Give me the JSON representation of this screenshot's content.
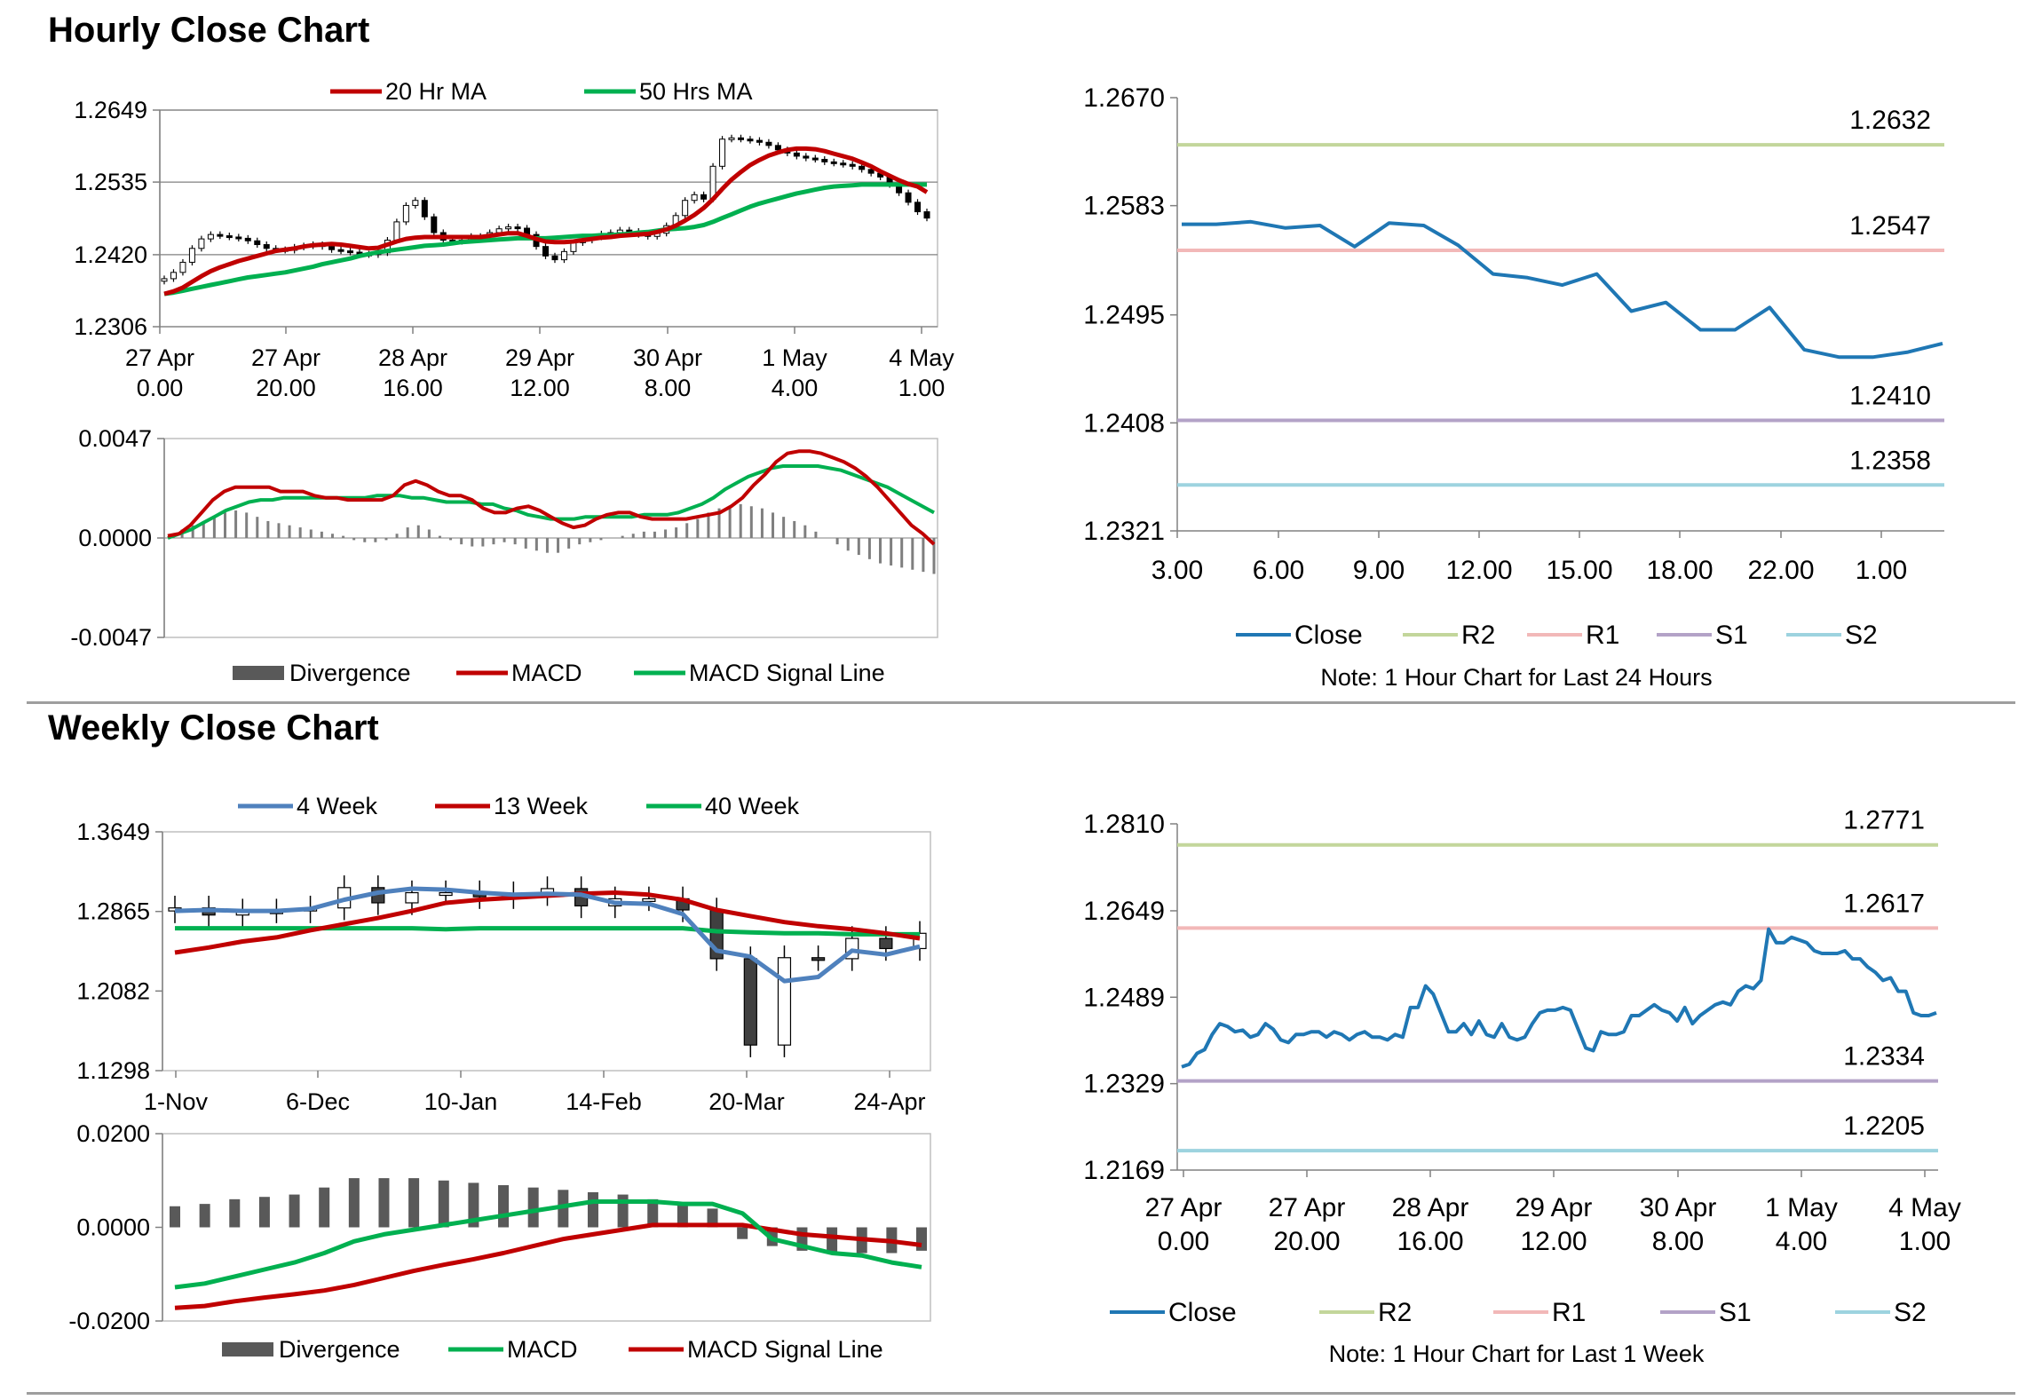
{
  "sections": {
    "hourly_title": "Hourly Close Chart",
    "weekly_title": "Weekly Close Chart"
  },
  "colors": {
    "ma_red": "#c00000",
    "ma_green": "#00b050",
    "blue": "#4f81bd",
    "close_blue": "#1f77b4",
    "divergence": "#595959",
    "r2": "#c3d69b",
    "r1": "#f2b8b8",
    "s1": "#b3a2c7",
    "s2": "#9dd3df"
  },
  "chart_data": [
    {
      "id": "hourly-price",
      "type": "candlestick",
      "ylim": [
        1.2306,
        1.2649
      ],
      "yticks": [
        "1.2649",
        "1.2535",
        "1.2420",
        "1.2306"
      ],
      "xticks": [
        [
          "27 Apr",
          "0.00"
        ],
        [
          "27 Apr",
          "20.00"
        ],
        [
          "28 Apr",
          "16.00"
        ],
        [
          "29 Apr",
          "12.00"
        ],
        [
          "30 Apr",
          "8.00"
        ],
        [
          "1 May",
          "4.00"
        ],
        [
          "4 May",
          "1.00"
        ]
      ],
      "legend": [
        "20 Hr MA",
        "50 Hrs MA"
      ],
      "close": [
        1.2382,
        1.2392,
        1.2408,
        1.243,
        1.2445,
        1.2452,
        1.245,
        1.2448,
        1.2446,
        1.2442,
        1.2436,
        1.243,
        1.2428,
        1.2427,
        1.2432,
        1.2434,
        1.2436,
        1.2433,
        1.2428,
        1.2426,
        1.2424,
        1.2421,
        1.242,
        1.2423,
        1.2443,
        1.2472,
        1.2498,
        1.2506,
        1.248,
        1.2455,
        1.2443,
        1.2441,
        1.2443,
        1.2449,
        1.2448,
        1.2455,
        1.2461,
        1.2464,
        1.2462,
        1.2452,
        1.2433,
        1.2418,
        1.2412,
        1.2425,
        1.2439,
        1.2443,
        1.2448,
        1.2453,
        1.2455,
        1.2459,
        1.2457,
        1.2452,
        1.2449,
        1.2454,
        1.2466,
        1.2482,
        1.2506,
        1.2515,
        1.2508,
        1.256,
        1.2603,
        1.2605,
        1.2603,
        1.2601,
        1.2598,
        1.2593,
        1.2586,
        1.2581,
        1.2576,
        1.2573,
        1.2571,
        1.2567,
        1.2565,
        1.2563,
        1.256,
        1.2555,
        1.2549,
        1.2543,
        1.2531,
        1.2518,
        1.2503,
        1.2488,
        1.2478
      ],
      "ma20": [
        1.2358,
        1.2362,
        1.2368,
        1.2377,
        1.2386,
        1.2394,
        1.24,
        1.2405,
        1.241,
        1.2414,
        1.2418,
        1.2422,
        1.2426,
        1.2428,
        1.243,
        1.2433,
        1.2435,
        1.2436,
        1.2437,
        1.2436,
        1.2434,
        1.2432,
        1.243,
        1.2431,
        1.2436,
        1.2441,
        1.2445,
        1.2447,
        1.2448,
        1.2448,
        1.2448,
        1.2448,
        1.2448,
        1.2448,
        1.2448,
        1.245,
        1.2452,
        1.2454,
        1.2454,
        1.245,
        1.2445,
        1.2441,
        1.244,
        1.244,
        1.2441,
        1.2443,
        1.2445,
        1.2447,
        1.2448,
        1.245,
        1.2451,
        1.2452,
        1.2453,
        1.2456,
        1.246,
        1.2466,
        1.2474,
        1.2483,
        1.2494,
        1.2508,
        1.2524,
        1.2539,
        1.2551,
        1.2562,
        1.257,
        1.2577,
        1.2582,
        1.2586,
        1.2588,
        1.2588,
        1.2587,
        1.2584,
        1.258,
        1.2576,
        1.2572,
        1.2566,
        1.256,
        1.2552,
        1.2545,
        1.2538,
        1.2532,
        1.2528,
        1.2519
      ],
      "ma50": [
        1.2358,
        1.236,
        1.2363,
        1.2366,
        1.2369,
        1.2372,
        1.2375,
        1.2378,
        1.2381,
        1.2384,
        1.2386,
        1.2388,
        1.239,
        1.2392,
        1.2395,
        1.2398,
        1.2401,
        1.2405,
        1.2408,
        1.2411,
        1.2414,
        1.2418,
        1.2421,
        1.2424,
        1.2426,
        1.2428,
        1.243,
        1.2432,
        1.2434,
        1.2435,
        1.2436,
        1.2438,
        1.244,
        1.2441,
        1.2442,
        1.2443,
        1.2444,
        1.2445,
        1.2446,
        1.2446,
        1.2446,
        1.2446,
        1.2447,
        1.2448,
        1.2449,
        1.245,
        1.245,
        1.2451,
        1.2451,
        1.2452,
        1.2453,
        1.2455,
        1.2456,
        1.2458,
        1.246,
        1.2461,
        1.2462,
        1.2464,
        1.2467,
        1.2472,
        1.2478,
        1.2484,
        1.249,
        1.2496,
        1.2501,
        1.2505,
        1.2509,
        1.2513,
        1.2517,
        1.252,
        1.2523,
        1.2526,
        1.2528,
        1.2529,
        1.253,
        1.2531,
        1.2531,
        1.2531,
        1.2531,
        1.2531,
        1.2531,
        1.2531,
        1.2531
      ]
    },
    {
      "id": "hourly-macd",
      "type": "macd",
      "ylim": [
        -0.0047,
        0.0047
      ],
      "yticks": [
        "0.0047",
        "0.0000",
        "-0.0047"
      ],
      "legend": [
        "Divergence",
        "MACD",
        "MACD Signal Line"
      ],
      "macd": [
        0.0001,
        0.0002,
        0.0006,
        0.0012,
        0.0018,
        0.0022,
        0.0024,
        0.0024,
        0.0024,
        0.0024,
        0.0022,
        0.0022,
        0.0022,
        0.002,
        0.0019,
        0.0019,
        0.0018,
        0.0018,
        0.0018,
        0.0018,
        0.002,
        0.0025,
        0.0027,
        0.0025,
        0.0022,
        0.002,
        0.002,
        0.0018,
        0.0014,
        0.0012,
        0.0012,
        0.0014,
        0.0015,
        0.0013,
        0.001,
        0.0007,
        0.0005,
        0.0006,
        0.0009,
        0.0011,
        0.0012,
        0.0012,
        0.001,
        0.0009,
        0.0009,
        0.0009,
        0.0009,
        0.001,
        0.0011,
        0.0012,
        0.0015,
        0.0019,
        0.0025,
        0.003,
        0.0036,
        0.004,
        0.0041,
        0.0041,
        0.004,
        0.0038,
        0.0036,
        0.0033,
        0.0029,
        0.0024,
        0.0018,
        0.0012,
        0.0006,
        0.0002,
        -0.0003
      ],
      "signal": [
        0.0,
        0.0002,
        0.0004,
        0.0007,
        0.001,
        0.0013,
        0.0015,
        0.0017,
        0.0018,
        0.0018,
        0.0019,
        0.0019,
        0.0019,
        0.0019,
        0.0019,
        0.0019,
        0.0019,
        0.0019,
        0.002,
        0.002,
        0.002,
        0.0019,
        0.0019,
        0.0018,
        0.0017,
        0.0017,
        0.0017,
        0.0016,
        0.0016,
        0.0014,
        0.0013,
        0.0011,
        0.001,
        0.0009,
        0.0009,
        0.0009,
        0.001,
        0.001,
        0.001,
        0.001,
        0.001,
        0.0011,
        0.0011,
        0.0011,
        0.0012,
        0.0014,
        0.0016,
        0.0019,
        0.0023,
        0.0026,
        0.0029,
        0.0031,
        0.0033,
        0.0034,
        0.0034,
        0.0034,
        0.0034,
        0.0033,
        0.0032,
        0.003,
        0.0028,
        0.0026,
        0.0024,
        0.0021,
        0.0018,
        0.0015,
        0.0012
      ],
      "divergence": [
        0.0002,
        0.0004,
        0.0006,
        0.0008,
        0.001,
        0.0012,
        0.0013,
        0.0012,
        0.001,
        0.0008,
        0.0007,
        0.0006,
        0.0005,
        0.0004,
        0.0003,
        0.0002,
        0.0001,
        -0.0001,
        -0.0002,
        -0.0002,
        -0.0001,
        0.0002,
        0.0005,
        0.0006,
        0.0004,
        0.0001,
        -0.0001,
        -0.0003,
        -0.0004,
        -0.0004,
        -0.0003,
        -0.0002,
        -0.0003,
        -0.0005,
        -0.0006,
        -0.0007,
        -0.0007,
        -0.0005,
        -0.0003,
        -0.0002,
        -0.0001,
        0.0,
        0.0001,
        0.0002,
        0.0003,
        0.0003,
        0.0004,
        0.0005,
        0.0007,
        0.0009,
        0.0012,
        0.0014,
        0.0015,
        0.0016,
        0.0015,
        0.0014,
        0.0012,
        0.001,
        0.0008,
        0.0006,
        0.0003,
        0.0,
        -0.0003,
        -0.0006,
        -0.0008,
        -0.001,
        -0.0012,
        -0.0013,
        -0.0014,
        -0.0015,
        -0.0016,
        -0.0017
      ]
    },
    {
      "id": "hourly-close-24h",
      "type": "line",
      "ylim": [
        1.2321,
        1.267
      ],
      "yticks": [
        "1.2670",
        "1.2583",
        "1.2495",
        "1.2408",
        "1.2321"
      ],
      "xticks": [
        "3.00",
        "6.00",
        "9.00",
        "12.00",
        "15.00",
        "18.00",
        "22.00",
        "1.00"
      ],
      "close": [
        1.2568,
        1.2568,
        1.257,
        1.2565,
        1.2567,
        1.255,
        1.2569,
        1.2567,
        1.2551,
        1.2528,
        1.2525,
        1.2519,
        1.2528,
        1.2498,
        1.2505,
        1.2483,
        1.2483,
        1.2501,
        1.2467,
        1.2461,
        1.2461,
        1.2465,
        1.2472
      ],
      "levels": [
        {
          "name": "R2",
          "value": "1.2632"
        },
        {
          "name": "R1",
          "value": "1.2547"
        },
        {
          "name": "S1",
          "value": "1.2410"
        },
        {
          "name": "S2",
          "value": "1.2358"
        }
      ],
      "legend": [
        "Close",
        "R2",
        "R1",
        "S1",
        "S2"
      ],
      "note": "Note: 1 Hour Chart for Last 24 Hours"
    },
    {
      "id": "weekly-price",
      "type": "candlestick",
      "ylim": [
        1.1298,
        1.3649
      ],
      "yticks": [
        "1.3649",
        "1.2865",
        "1.2082",
        "1.1298"
      ],
      "xticks": [
        "1-Nov",
        "6-Dec",
        "10-Jan",
        "14-Feb",
        "20-Mar",
        "24-Apr"
      ],
      "legend": [
        "4 Week",
        "13 Week",
        "40 Week"
      ],
      "close": [
        1.29,
        1.283,
        1.287,
        1.287,
        1.29,
        1.31,
        1.295,
        1.305,
        1.305,
        1.301,
        1.304,
        1.309,
        1.292,
        1.299,
        1.299,
        1.288,
        1.24,
        1.155,
        1.241,
        1.24,
        1.26,
        1.25,
        1.265
      ],
      "ma4": [
        1.287,
        1.288,
        1.287,
        1.287,
        1.289,
        1.298,
        1.305,
        1.309,
        1.308,
        1.305,
        1.303,
        1.304,
        1.303,
        1.295,
        1.294,
        1.284,
        1.248,
        1.242,
        1.218,
        1.222,
        1.248,
        1.244,
        1.252
      ],
      "ma13": [
        1.246,
        1.251,
        1.257,
        1.261,
        1.268,
        1.274,
        1.28,
        1.287,
        1.295,
        1.298,
        1.3,
        1.302,
        1.304,
        1.305,
        1.303,
        1.298,
        1.288,
        1.282,
        1.276,
        1.272,
        1.269,
        1.265,
        1.26
      ],
      "ma40": [
        1.27,
        1.27,
        1.27,
        1.27,
        1.27,
        1.27,
        1.27,
        1.27,
        1.269,
        1.27,
        1.27,
        1.27,
        1.27,
        1.27,
        1.27,
        1.27,
        1.267,
        1.266,
        1.265,
        1.265,
        1.264,
        1.264,
        1.264
      ]
    },
    {
      "id": "weekly-macd",
      "type": "macd",
      "ylim": [
        -0.02,
        0.02
      ],
      "yticks": [
        "0.0200",
        "0.0000",
        "-0.0200"
      ],
      "legend": [
        "Divergence",
        "MACD",
        "MACD Signal Line"
      ],
      "divergence": [
        0.0045,
        0.005,
        0.006,
        0.0065,
        0.007,
        0.0085,
        0.0105,
        0.0105,
        0.0105,
        0.01,
        0.0095,
        0.009,
        0.0085,
        0.008,
        0.0075,
        0.007,
        0.006,
        0.005,
        0.004,
        -0.0025,
        -0.004,
        -0.005,
        -0.0055,
        -0.0055,
        -0.0055,
        -0.005
      ],
      "macd": [
        -0.0128,
        -0.012,
        -0.0105,
        -0.009,
        -0.0075,
        -0.0055,
        -0.003,
        -0.0015,
        -0.0005,
        0.0005,
        0.0015,
        0.0025,
        0.0035,
        0.0045,
        0.0055,
        0.0055,
        0.0055,
        0.005,
        0.005,
        0.003,
        -0.0025,
        -0.004,
        -0.0055,
        -0.006,
        -0.0075,
        -0.0085
      ],
      "signal": [
        -0.0172,
        -0.0168,
        -0.0158,
        -0.015,
        -0.0143,
        -0.0135,
        -0.0123,
        -0.0108,
        -0.0093,
        -0.008,
        -0.0068,
        -0.0055,
        -0.004,
        -0.0025,
        -0.0015,
        -0.0005,
        0.0005,
        0.0005,
        0.0005,
        0.0005,
        -0.0005,
        -0.0015,
        -0.002,
        -0.0025,
        -0.003,
        -0.0038
      ]
    },
    {
      "id": "weekly-close-1w",
      "type": "line",
      "ylim": [
        1.2169,
        1.281
      ],
      "yticks": [
        "1.2810",
        "1.2649",
        "1.2489",
        "1.2329",
        "1.2169"
      ],
      "xticks": [
        [
          "27 Apr",
          "0.00"
        ],
        [
          "27 Apr",
          "20.00"
        ],
        [
          "28 Apr",
          "16.00"
        ],
        [
          "29 Apr",
          "12.00"
        ],
        [
          "30 Apr",
          "8.00"
        ],
        [
          "1 May",
          "4.00"
        ],
        [
          "4 May",
          "1.00"
        ]
      ],
      "close": [
        1.236,
        1.2365,
        1.2385,
        1.2392,
        1.242,
        1.244,
        1.2435,
        1.2425,
        1.2428,
        1.2415,
        1.242,
        1.244,
        1.243,
        1.241,
        1.2405,
        1.242,
        1.242,
        1.2425,
        1.2425,
        1.2415,
        1.2425,
        1.242,
        1.241,
        1.242,
        1.2425,
        1.2415,
        1.2415,
        1.241,
        1.242,
        1.2415,
        1.247,
        1.247,
        1.251,
        1.2495,
        1.246,
        1.2425,
        1.2425,
        1.244,
        1.242,
        1.2445,
        1.242,
        1.2415,
        1.244,
        1.2415,
        1.241,
        1.2415,
        1.244,
        1.246,
        1.2465,
        1.2465,
        1.247,
        1.2465,
        1.243,
        1.2395,
        1.239,
        1.2425,
        1.242,
        1.242,
        1.2425,
        1.2455,
        1.2455,
        1.2465,
        1.2475,
        1.2465,
        1.246,
        1.2445,
        1.247,
        1.244,
        1.2455,
        1.2465,
        1.2475,
        1.248,
        1.2475,
        1.25,
        1.251,
        1.2505,
        1.252,
        1.2615,
        1.259,
        1.259,
        1.26,
        1.2595,
        1.259,
        1.2575,
        1.257,
        1.257,
        1.257,
        1.2575,
        1.256,
        1.256,
        1.2545,
        1.2535,
        1.252,
        1.2525,
        1.25,
        1.25,
        1.246,
        1.2455,
        1.2455,
        1.246
      ],
      "levels": [
        {
          "name": "R2",
          "value": "1.2771"
        },
        {
          "name": "R1",
          "value": "1.2617"
        },
        {
          "name": "S1",
          "value": "1.2334"
        },
        {
          "name": "S2",
          "value": "1.2205"
        }
      ],
      "legend": [
        "Close",
        "R2",
        "R1",
        "S1",
        "S2"
      ],
      "note": "Note: 1 Hour Chart for Last 1 Week"
    }
  ]
}
